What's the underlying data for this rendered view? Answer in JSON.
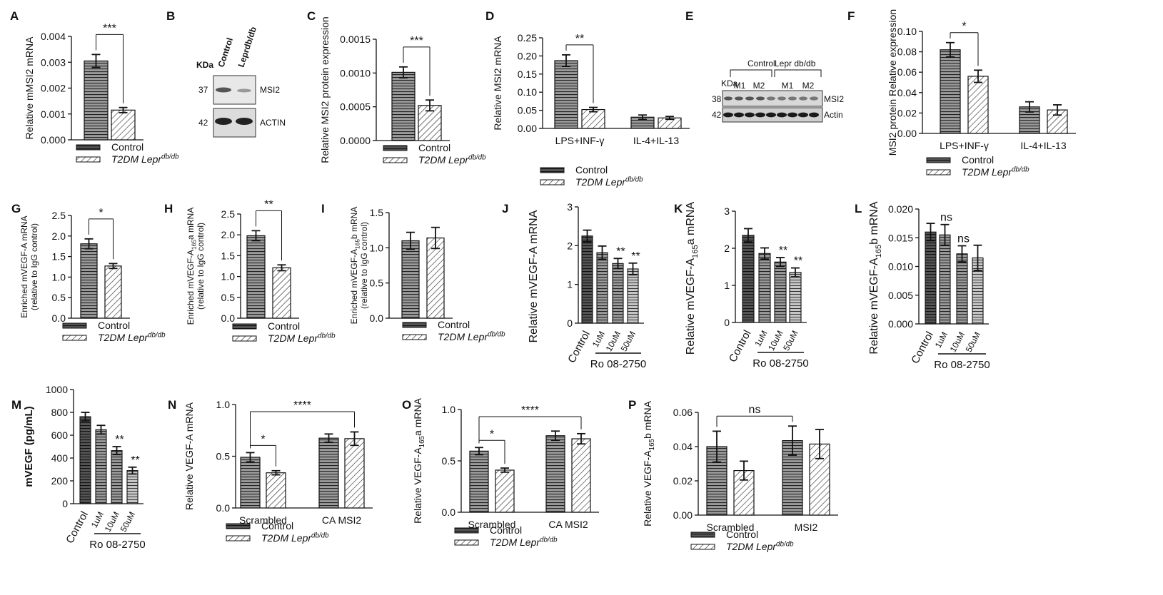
{
  "chart_data": [
    {
      "panel": "A",
      "type": "bar",
      "ylabel": "Relative mMSI2 mRNA",
      "ylim": [
        0,
        0.004
      ],
      "yticks": [
        "0.000",
        "0.001",
        "0.002",
        "0.003",
        "0.004"
      ],
      "groups": [
        {
          "label": "",
          "bars": [
            {
              "series": 0,
              "value": 0.00305,
              "err": 0.00025
            },
            {
              "series": 1,
              "value": 0.00115,
              "err": 0.0001
            }
          ]
        }
      ],
      "sig": [
        {
          "text": "***",
          "from": [
            0,
            0
          ],
          "to": [
            0,
            1
          ]
        }
      ],
      "legend": [
        "Control",
        "T2DM Lepr<sup>db/db</sup>"
      ]
    },
    {
      "panel": "B",
      "type": "blot",
      "kda_label": "KDa",
      "lanes": [
        "Control",
        "Leprdb/db"
      ],
      "rows": [
        {
          "kda": "37",
          "name": "MSI2"
        },
        {
          "kda": "42",
          "name": "ACTIN"
        }
      ]
    },
    {
      "panel": "C",
      "type": "bar",
      "ylabel": "Relative MSI2 protein expression",
      "ylim": [
        0,
        0.0015
      ],
      "yticks": [
        "0.0000",
        "0.0005",
        "0.0010",
        "0.0015"
      ],
      "groups": [
        {
          "label": "",
          "bars": [
            {
              "series": 0,
              "value": 0.00101,
              "err": 8e-05
            },
            {
              "series": 1,
              "value": 0.00052,
              "err": 8e-05
            }
          ]
        }
      ],
      "sig": [
        {
          "text": "***",
          "from": [
            0,
            0
          ],
          "to": [
            0,
            1
          ]
        }
      ],
      "legend": [
        "Control",
        "T2DM Lepr<sup>db/db</sup>"
      ]
    },
    {
      "panel": "D",
      "type": "bar",
      "ylabel": "Relative MSI2 mRNA",
      "ylim": [
        0,
        0.25
      ],
      "yticks": [
        "0.00",
        "0.05",
        "0.10",
        "0.15",
        "0.20",
        "0.25"
      ],
      "groups": [
        {
          "label": "LPS+INF-γ",
          "bars": [
            {
              "series": 0,
              "value": 0.187,
              "err": 0.016
            },
            {
              "series": 1,
              "value": 0.052,
              "err": 0.006
            }
          ]
        },
        {
          "label": "IL-4+IL-13",
          "bars": [
            {
              "series": 0,
              "value": 0.031,
              "err": 0.006
            },
            {
              "series": 1,
              "value": 0.029,
              "err": 0.004
            }
          ]
        }
      ],
      "sig": [
        {
          "text": "**",
          "from": [
            0,
            0
          ],
          "to": [
            0,
            1
          ]
        }
      ],
      "legend": [
        "Control",
        "T2DM Lepr<sup>db/db</sup>"
      ]
    },
    {
      "panel": "E",
      "type": "blot",
      "kda_label": "KDa",
      "groups": [
        "Control",
        "Lepr db/db"
      ],
      "lanes": [
        "M1",
        "M2",
        "M1",
        "M2"
      ],
      "rows": [
        {
          "kda": "38",
          "name": "MSI2"
        },
        {
          "kda": "42",
          "name": "Actin"
        }
      ]
    },
    {
      "panel": "F",
      "type": "bar",
      "ylabel": "MSI2 protein Relative expression",
      "ylim": [
        0,
        0.1
      ],
      "yticks": [
        "0.00",
        "0.02",
        "0.04",
        "0.06",
        "0.08",
        "0.10"
      ],
      "groups": [
        {
          "label": "LPS+INF-γ",
          "bars": [
            {
              "series": 0,
              "value": 0.082,
              "err": 0.007
            },
            {
              "series": 1,
              "value": 0.056,
              "err": 0.006
            }
          ]
        },
        {
          "label": "IL-4+IL-13",
          "bars": [
            {
              "series": 0,
              "value": 0.026,
              "err": 0.005
            },
            {
              "series": 1,
              "value": 0.023,
              "err": 0.005
            }
          ]
        }
      ],
      "sig": [
        {
          "text": "*",
          "from": [
            0,
            0
          ],
          "to": [
            0,
            1
          ]
        }
      ],
      "legend": [
        "Control",
        "T2DM Lepr<sup>db/db</sup>"
      ]
    },
    {
      "panel": "G",
      "type": "bar",
      "ylabel": "Enriched mVEGF-A mRNA",
      "ylabel2": "(relative to IgG control)",
      "ylim": [
        0,
        2.5
      ],
      "yticks": [
        "0.0",
        "0.5",
        "1.0",
        "1.5",
        "2.0",
        "2.5"
      ],
      "groups": [
        {
          "label": "",
          "bars": [
            {
              "series": 0,
              "value": 1.81,
              "err": 0.12
            },
            {
              "series": 1,
              "value": 1.27,
              "err": 0.06
            }
          ]
        }
      ],
      "sig": [
        {
          "text": "*",
          "from": [
            0,
            0
          ],
          "to": [
            0,
            1
          ]
        }
      ],
      "legend": [
        "Control",
        "T2DM Lepr<sup>db/db</sup>"
      ]
    },
    {
      "panel": "H",
      "type": "bar",
      "ylabel": "Enriched mVEGF-A<sub>165</sub>a mRNA",
      "ylabel2": "(relative to IgG control)",
      "ylim": [
        0,
        2.5
      ],
      "yticks": [
        "0.0",
        "0.5",
        "1.0",
        "1.5",
        "2.0",
        "2.5"
      ],
      "groups": [
        {
          "label": "",
          "bars": [
            {
              "series": 0,
              "value": 1.98,
              "err": 0.12
            },
            {
              "series": 1,
              "value": 1.21,
              "err": 0.07
            }
          ]
        }
      ],
      "sig": [
        {
          "text": "**",
          "from": [
            0,
            0
          ],
          "to": [
            0,
            1
          ]
        }
      ],
      "legend": [
        "Control",
        "T2DM Lepr<sup>db/db</sup>"
      ]
    },
    {
      "panel": "I",
      "type": "bar",
      "ylabel": "Enriched mVEGF-A<sub>165</sub>b mRNA",
      "ylabel2": "(relative to IgG control)",
      "ylim": [
        0,
        1.5
      ],
      "yticks": [
        "0.0",
        "0.5",
        "1.0",
        "1.5"
      ],
      "groups": [
        {
          "label": "",
          "bars": [
            {
              "series": 0,
              "value": 1.1,
              "err": 0.12
            },
            {
              "series": 1,
              "value": 1.14,
              "err": 0.15
            }
          ]
        }
      ],
      "sig": [],
      "legend": [
        "Control",
        "T2DM Lepr<sup>db/db</sup>"
      ]
    },
    {
      "panel": "J",
      "type": "bar4",
      "ylabel": "Relative mVEGF-A mRNA",
      "ylim": [
        0,
        3
      ],
      "yticks": [
        "0",
        "1",
        "2",
        "3"
      ],
      "categories": [
        "Control",
        "1uM",
        "10uM",
        "50uM"
      ],
      "values": [
        2.25,
        1.82,
        1.54,
        1.4
      ],
      "errors": [
        0.15,
        0.17,
        0.13,
        0.15
      ],
      "stars": [
        "",
        "",
        "**",
        "**"
      ],
      "group_label": "Ro 08-2750"
    },
    {
      "panel": "K",
      "type": "bar4",
      "ylabel": "Relative mVEGF-A<sub>165</sub>a mRNA",
      "ylim": [
        0,
        3
      ],
      "yticks": [
        "0",
        "1",
        "2",
        "3"
      ],
      "categories": [
        "Control",
        "1uM",
        "10uM",
        "50uM"
      ],
      "values": [
        2.35,
        1.86,
        1.63,
        1.35
      ],
      "errors": [
        0.18,
        0.15,
        0.12,
        0.12
      ],
      "stars": [
        "",
        "",
        "**",
        "**"
      ],
      "group_label": "Ro 08-2750"
    },
    {
      "panel": "L",
      "type": "bar4",
      "ylabel": "Relative mVEGF-A<sub>165</sub>b mRNA",
      "ylim": [
        0,
        0.02
      ],
      "yticks": [
        "0.000",
        "0.005",
        "0.010",
        "0.015",
        "0.020"
      ],
      "categories": [
        "Control",
        "1uM",
        "10uM",
        "50uM"
      ],
      "values": [
        0.016,
        0.0155,
        0.0122,
        0.0115
      ],
      "errors": [
        0.0015,
        0.0018,
        0.0014,
        0.0022
      ],
      "stars": [
        "",
        "ns",
        "ns",
        ""
      ],
      "group_label": "Ro 08-2750"
    },
    {
      "panel": "M",
      "type": "bar4",
      "ylabel": "mVEGF (pg/mL)",
      "ylim": [
        0,
        1000
      ],
      "yticks": [
        "0",
        "200",
        "400",
        "600",
        "800",
        "1000"
      ],
      "categories": [
        "Control",
        "1uM",
        "10uM",
        "50uM"
      ],
      "values": [
        762,
        648,
        465,
        290
      ],
      "errors": [
        38,
        38,
        35,
        30
      ],
      "stars": [
        "",
        "",
        "**",
        "**"
      ],
      "group_label": "Ro 08-2750"
    },
    {
      "panel": "N",
      "type": "bar",
      "ylabel": "Relative VEGF-A mRNA",
      "ylim": [
        0,
        1.0
      ],
      "yticks": [
        "0.0",
        "0.5",
        "1.0"
      ],
      "groups": [
        {
          "label": "Scrambled",
          "bars": [
            {
              "series": 0,
              "value": 0.49,
              "err": 0.045
            },
            {
              "series": 1,
              "value": 0.34,
              "err": 0.02
            }
          ]
        },
        {
          "label": "CA MSI2",
          "bars": [
            {
              "series": 0,
              "value": 0.675,
              "err": 0.04
            },
            {
              "series": 1,
              "value": 0.67,
              "err": 0.065
            }
          ]
        }
      ],
      "sig": [
        {
          "text": "*",
          "from": [
            0,
            0
          ],
          "to": [
            0,
            1
          ]
        },
        {
          "text": "****",
          "from": [
            0,
            0
          ],
          "to": [
            1,
            1
          ]
        }
      ],
      "legend": [
        "Control",
        "T2DM Lepr<sup>db/db</sup>"
      ]
    },
    {
      "panel": "O",
      "type": "bar",
      "ylabel": "Relative VEGF-A<sub>165</sub>a mRNA",
      "ylim": [
        0,
        1.0
      ],
      "yticks": [
        "0.0",
        "0.5",
        "1.0"
      ],
      "groups": [
        {
          "label": "Scrambled",
          "bars": [
            {
              "series": 0,
              "value": 0.595,
              "err": 0.035
            },
            {
              "series": 1,
              "value": 0.41,
              "err": 0.02
            }
          ]
        },
        {
          "label": "CA MSI2",
          "bars": [
            {
              "series": 0,
              "value": 0.745,
              "err": 0.045
            },
            {
              "series": 1,
              "value": 0.715,
              "err": 0.05
            }
          ]
        }
      ],
      "sig": [
        {
          "text": "*",
          "from": [
            0,
            0
          ],
          "to": [
            0,
            1
          ]
        },
        {
          "text": "****",
          "from": [
            0,
            0
          ],
          "to": [
            1,
            1
          ]
        }
      ],
      "legend": [
        "Control",
        "T2DM Lepr<sup>db/db</sup>"
      ]
    },
    {
      "panel": "P",
      "type": "bar",
      "ylabel": "Relative VEGF-A<sub>165</sub>b mRNA",
      "ylim": [
        0,
        0.06
      ],
      "yticks": [
        "0.00",
        "0.02",
        "0.04",
        "0.06"
      ],
      "groups": [
        {
          "label": "Scrambled",
          "bars": [
            {
              "series": 0,
              "value": 0.04,
              "err": 0.009
            },
            {
              "series": 1,
              "value": 0.026,
              "err": 0.0055
            }
          ]
        },
        {
          "label": "MSI2",
          "bars": [
            {
              "series": 0,
              "value": 0.0435,
              "err": 0.0085
            },
            {
              "series": 1,
              "value": 0.0415,
              "err": 0.0085
            }
          ]
        }
      ],
      "sig": [
        {
          "text": "ns",
          "from": [
            0,
            0
          ],
          "to": [
            1,
            0
          ]
        }
      ],
      "legend": [
        "Control",
        "T2DM Lepr<sup>db/db</sup>"
      ]
    }
  ]
}
